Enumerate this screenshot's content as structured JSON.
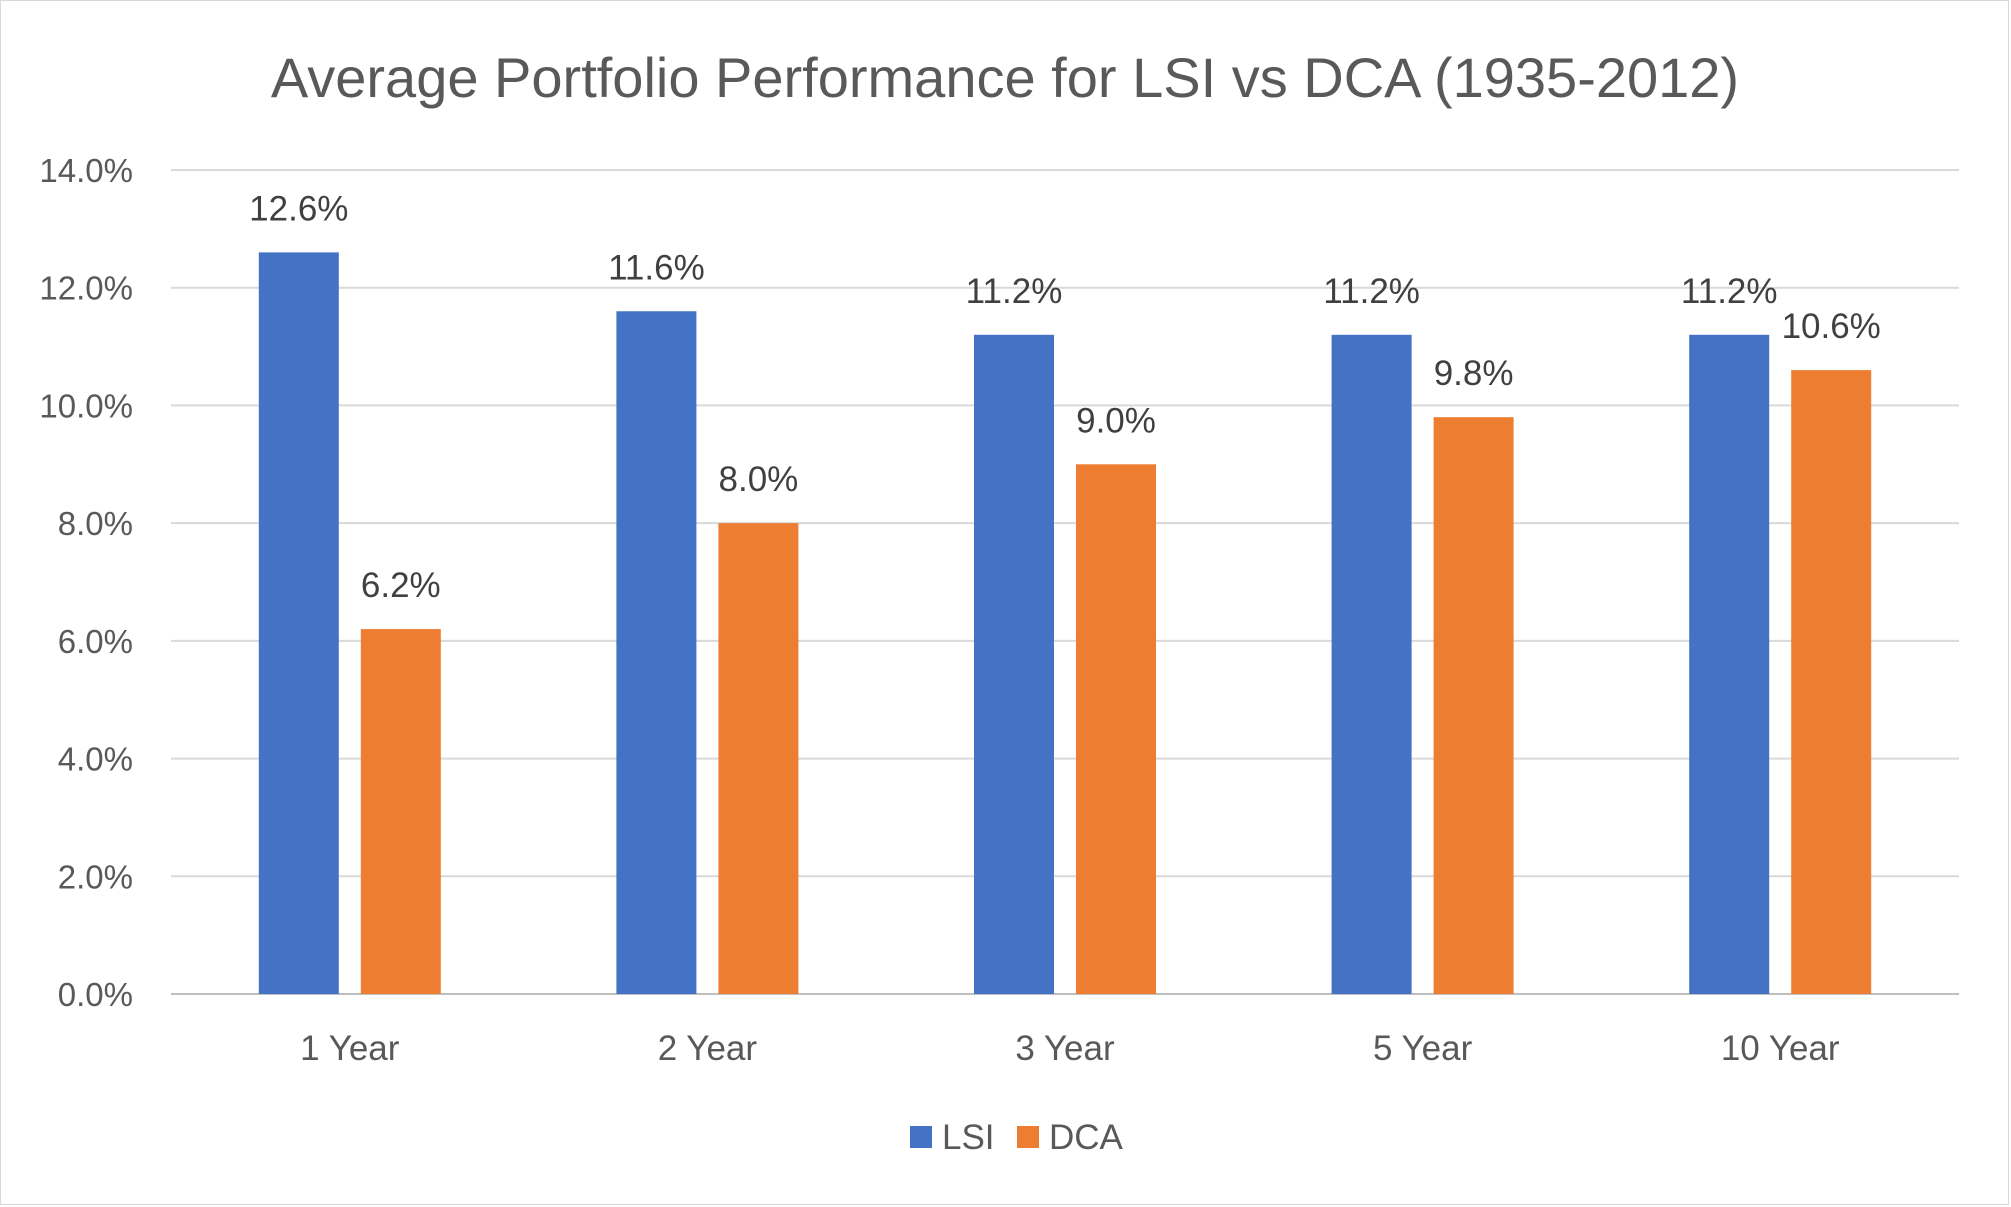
{
  "chart_data": {
    "type": "bar",
    "title": "Average Portfolio Performance for LSI vs DCA (1935-2012)",
    "xlabel": "",
    "ylabel": "",
    "categories": [
      "1 Year",
      "2 Year",
      "3 Year",
      "5 Year",
      "10 Year"
    ],
    "series": [
      {
        "name": "LSI",
        "color": "#4472C4",
        "values": [
          12.6,
          11.6,
          11.2,
          11.2,
          11.2
        ],
        "labels": [
          "12.6%",
          "11.6%",
          "11.2%",
          "11.2%",
          "11.2%"
        ]
      },
      {
        "name": "DCA",
        "color": "#ED7D31",
        "values": [
          6.2,
          8.0,
          9.0,
          9.8,
          10.6
        ],
        "labels": [
          "6.2%",
          "8.0%",
          "9.0%",
          "9.8%",
          "10.6%"
        ]
      }
    ],
    "ylim": [
      0,
      14
    ],
    "yticks": [
      0,
      2,
      4,
      6,
      8,
      10,
      12,
      14
    ],
    "ytick_labels": [
      "0.0%",
      "2.0%",
      "4.0%",
      "6.0%",
      "8.0%",
      "10.0%",
      "12.0%",
      "14.0%"
    ],
    "grid": true,
    "legend_position": "bottom"
  }
}
